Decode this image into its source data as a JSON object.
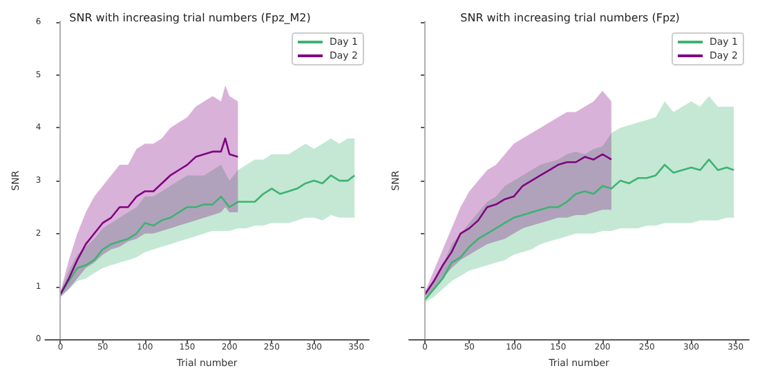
{
  "chart_data": [
    {
      "type": "line",
      "title": "SNR with increasing trial numbers (Fpz_M2)",
      "xlabel": "Trial number",
      "ylabel": "SNR",
      "xlim": [
        -18,
        365
      ],
      "xticks": [
        0,
        50,
        100,
        150,
        200,
        250,
        300,
        350
      ],
      "ylim": [
        0,
        6
      ],
      "yticks": [
        0,
        1,
        2,
        3,
        4,
        5,
        6
      ],
      "legend": "top right",
      "grid": false,
      "ref_lines": [
        {
          "axis": "x",
          "value": 0,
          "color": "#b0b0b0"
        }
      ],
      "series": [
        {
          "name": "Day 1",
          "color": "#3cb371",
          "x": [
            0,
            10,
            20,
            30,
            40,
            50,
            60,
            70,
            80,
            90,
            100,
            110,
            120,
            130,
            140,
            150,
            160,
            170,
            180,
            190,
            200,
            210,
            220,
            230,
            240,
            250,
            260,
            270,
            280,
            290,
            300,
            310,
            320,
            330,
            340,
            348
          ],
          "values": [
            0.85,
            1.1,
            1.35,
            1.4,
            1.5,
            1.7,
            1.8,
            1.85,
            1.9,
            2.0,
            2.2,
            2.15,
            2.25,
            2.3,
            2.4,
            2.5,
            2.5,
            2.55,
            2.55,
            2.7,
            2.5,
            2.6,
            2.6,
            2.6,
            2.75,
            2.85,
            2.75,
            2.8,
            2.85,
            2.95,
            3.0,
            2.95,
            3.1,
            3.0,
            3.0,
            3.1
          ],
          "lower": [
            0.8,
            0.95,
            1.1,
            1.15,
            1.25,
            1.35,
            1.4,
            1.45,
            1.5,
            1.55,
            1.65,
            1.7,
            1.75,
            1.8,
            1.85,
            1.9,
            1.95,
            2.0,
            2.05,
            2.05,
            2.05,
            2.1,
            2.1,
            2.15,
            2.15,
            2.2,
            2.2,
            2.2,
            2.25,
            2.3,
            2.3,
            2.25,
            2.35,
            2.3,
            2.3,
            2.3
          ],
          "upper": [
            0.9,
            1.3,
            1.6,
            1.75,
            1.9,
            2.1,
            2.2,
            2.3,
            2.4,
            2.5,
            2.7,
            2.7,
            2.8,
            2.9,
            3.0,
            3.1,
            3.1,
            3.1,
            3.2,
            3.3,
            3.0,
            3.2,
            3.3,
            3.4,
            3.4,
            3.5,
            3.5,
            3.5,
            3.6,
            3.7,
            3.6,
            3.7,
            3.8,
            3.7,
            3.8,
            3.8
          ]
        },
        {
          "name": "Day 2",
          "color": "#800080",
          "x": [
            0,
            10,
            20,
            30,
            40,
            50,
            60,
            70,
            80,
            90,
            100,
            110,
            120,
            130,
            140,
            150,
            160,
            170,
            180,
            190,
            195,
            200,
            210
          ],
          "values": [
            0.85,
            1.15,
            1.5,
            1.8,
            2.0,
            2.2,
            2.3,
            2.5,
            2.5,
            2.7,
            2.8,
            2.8,
            2.95,
            3.1,
            3.2,
            3.3,
            3.45,
            3.5,
            3.55,
            3.55,
            3.8,
            3.5,
            3.45
          ],
          "lower": [
            0.8,
            0.95,
            1.15,
            1.35,
            1.45,
            1.6,
            1.7,
            1.75,
            1.85,
            1.9,
            2.0,
            2.0,
            2.05,
            2.1,
            2.15,
            2.2,
            2.25,
            2.3,
            2.35,
            2.4,
            2.5,
            2.4,
            2.4
          ],
          "upper": [
            0.9,
            1.5,
            2.0,
            2.4,
            2.7,
            2.9,
            3.1,
            3.3,
            3.3,
            3.6,
            3.7,
            3.7,
            3.8,
            4.0,
            4.1,
            4.2,
            4.4,
            4.5,
            4.6,
            4.5,
            4.8,
            4.6,
            4.5
          ]
        }
      ]
    },
    {
      "type": "line",
      "title": "SNR with increasing trial numbers (Fpz)",
      "xlabel": "Trial number",
      "ylabel": "SNR",
      "xlim": [
        -18,
        365
      ],
      "xticks": [
        0,
        50,
        100,
        150,
        200,
        250,
        300,
        350
      ],
      "ylim": [
        0,
        6
      ],
      "yticks": [
        0,
        1,
        2,
        3,
        4,
        5,
        6
      ],
      "tick_labels": "x",
      "legend": "top right",
      "grid": false,
      "ref_lines": [
        {
          "axis": "x",
          "value": 0,
          "color": "#b0b0b0"
        }
      ],
      "series": [
        {
          "name": "Day 1",
          "color": "#3cb371",
          "x": [
            0,
            10,
            20,
            30,
            40,
            50,
            60,
            70,
            80,
            90,
            100,
            110,
            120,
            130,
            140,
            150,
            160,
            170,
            180,
            190,
            200,
            210,
            220,
            230,
            240,
            250,
            260,
            270,
            280,
            290,
            300,
            310,
            320,
            330,
            340,
            348
          ],
          "values": [
            0.75,
            0.95,
            1.15,
            1.45,
            1.55,
            1.75,
            1.9,
            2.0,
            2.1,
            2.2,
            2.3,
            2.35,
            2.4,
            2.45,
            2.5,
            2.5,
            2.6,
            2.75,
            2.8,
            2.75,
            2.9,
            2.85,
            3.0,
            2.95,
            3.05,
            3.05,
            3.1,
            3.3,
            3.15,
            3.2,
            3.25,
            3.2,
            3.4,
            3.2,
            3.25,
            3.2
          ],
          "lower": [
            0.7,
            0.8,
            0.95,
            1.1,
            1.2,
            1.3,
            1.35,
            1.4,
            1.45,
            1.5,
            1.6,
            1.65,
            1.7,
            1.8,
            1.85,
            1.9,
            1.95,
            2.0,
            2.0,
            2.0,
            2.05,
            2.05,
            2.1,
            2.1,
            2.1,
            2.15,
            2.15,
            2.2,
            2.2,
            2.2,
            2.2,
            2.25,
            2.25,
            2.25,
            2.3,
            2.3
          ],
          "upper": [
            0.8,
            1.1,
            1.4,
            1.8,
            2.0,
            2.2,
            2.4,
            2.6,
            2.7,
            2.9,
            3.0,
            3.1,
            3.2,
            3.3,
            3.35,
            3.4,
            3.5,
            3.55,
            3.5,
            3.6,
            3.65,
            3.9,
            4.0,
            4.05,
            4.1,
            4.15,
            4.2,
            4.5,
            4.3,
            4.4,
            4.5,
            4.4,
            4.6,
            4.4,
            4.4,
            4.4
          ]
        },
        {
          "name": "Day 2",
          "color": "#800080",
          "x": [
            0,
            10,
            20,
            30,
            40,
            50,
            60,
            70,
            80,
            90,
            100,
            110,
            120,
            130,
            140,
            150,
            160,
            170,
            180,
            190,
            200,
            210
          ],
          "values": [
            0.85,
            1.1,
            1.4,
            1.65,
            2.0,
            2.1,
            2.25,
            2.5,
            2.55,
            2.65,
            2.7,
            2.9,
            3.0,
            3.1,
            3.2,
            3.3,
            3.35,
            3.35,
            3.45,
            3.4,
            3.5,
            3.4
          ],
          "lower": [
            0.8,
            0.95,
            1.15,
            1.35,
            1.5,
            1.6,
            1.7,
            1.8,
            1.85,
            1.9,
            2.0,
            2.1,
            2.15,
            2.2,
            2.25,
            2.3,
            2.3,
            2.35,
            2.35,
            2.4,
            2.45,
            2.45
          ],
          "upper": [
            0.9,
            1.3,
            1.7,
            2.1,
            2.5,
            2.8,
            3.0,
            3.2,
            3.3,
            3.5,
            3.7,
            3.8,
            3.9,
            4.0,
            4.1,
            4.2,
            4.3,
            4.3,
            4.4,
            4.5,
            4.7,
            4.5
          ]
        }
      ]
    }
  ]
}
